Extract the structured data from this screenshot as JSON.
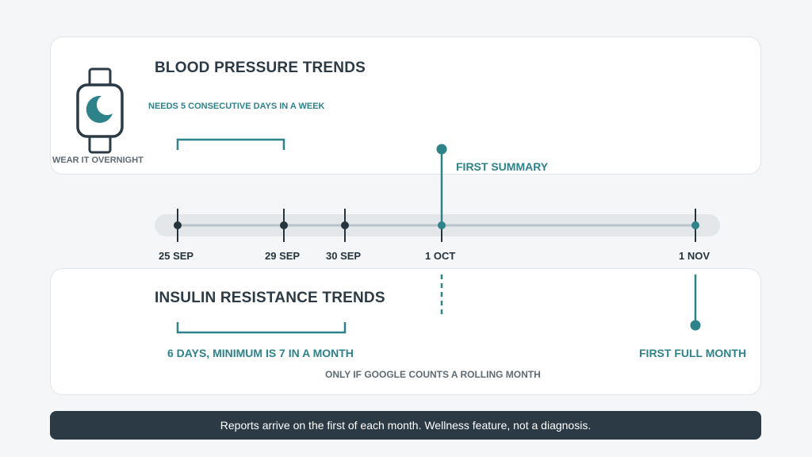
{
  "blood_pressure": {
    "title": "BLOOD PRESSURE TRENDS",
    "requirement": "NEEDS 5 CONSECUTIVE DAYS IN A WEEK",
    "wear_note": "WEAR IT OVERNIGHT",
    "milestone": "FIRST SUMMARY"
  },
  "insulin_resistance": {
    "title": "INSULIN RESISTANCE TRENDS",
    "requirement": "6 DAYS, MINIMUM IS 7 IN A MONTH",
    "note": "ONLY IF GOOGLE COUNTS A ROLLING MONTH",
    "milestone": "FIRST FULL MONTH"
  },
  "timeline": {
    "dates": [
      "25 SEP",
      "29 SEP",
      "30 SEP",
      "1 OCT",
      "1 NOV"
    ]
  },
  "footer": {
    "text": "Reports arrive on the first of each month. Wellness feature, not a diagnosis."
  },
  "colors": {
    "teal": "#2e8289",
    "dark": "#2b3a44",
    "track": "#e3e7ea"
  },
  "icons": {
    "device": "smartwatch-icon",
    "face": "moon-icon"
  }
}
